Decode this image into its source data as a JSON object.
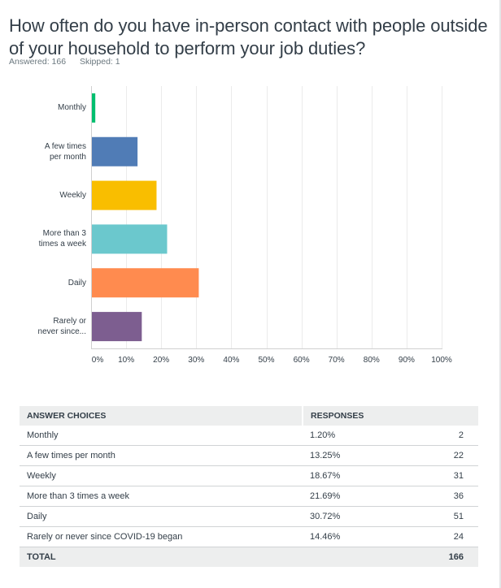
{
  "question": {
    "title": "How often do you have in-person contact with people outside of your household to perform your job duties?",
    "answered": "Answered: 166",
    "skipped": "Skipped: 1"
  },
  "chart_data": {
    "type": "bar",
    "orientation": "horizontal",
    "categories": [
      "Monthly",
      "A few times per month",
      "Weekly",
      "More than 3 times a week",
      "Daily",
      "Rarely or never since..."
    ],
    "category_lines": [
      [
        "Monthly"
      ],
      [
        "A few times",
        "per month"
      ],
      [
        "Weekly"
      ],
      [
        "More than 3",
        "times a week"
      ],
      [
        "Daily"
      ],
      [
        "Rarely or",
        "never since..."
      ]
    ],
    "values": [
      1.2,
      13.25,
      18.67,
      21.69,
      30.72,
      14.46
    ],
    "colors": [
      "#00bf6f",
      "#507cb6",
      "#f9be00",
      "#6bc8cd",
      "#ff8b4f",
      "#7d5e90"
    ],
    "xlim": [
      0,
      100
    ],
    "xticks": [
      "0%",
      "10%",
      "20%",
      "30%",
      "40%",
      "50%",
      "60%",
      "70%",
      "80%",
      "90%",
      "100%"
    ],
    "grid": true,
    "title": "",
    "xlabel": "",
    "ylabel": ""
  },
  "table": {
    "headers": [
      "ANSWER CHOICES",
      "RESPONSES"
    ],
    "rows": [
      {
        "choice": "Monthly",
        "percent": "1.20%",
        "count": "2"
      },
      {
        "choice": "A few times per month",
        "percent": "13.25%",
        "count": "22"
      },
      {
        "choice": "Weekly",
        "percent": "18.67%",
        "count": "31"
      },
      {
        "choice": "More than 3 times a week",
        "percent": "21.69%",
        "count": "36"
      },
      {
        "choice": "Daily",
        "percent": "30.72%",
        "count": "51"
      },
      {
        "choice": "Rarely or never since COVID-19 began",
        "percent": "14.46%",
        "count": "24"
      }
    ],
    "total_label": "TOTAL",
    "total_count": "166"
  }
}
